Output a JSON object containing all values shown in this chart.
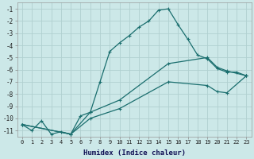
{
  "xlabel": "Humidex (Indice chaleur)",
  "bg_color": "#cce8e8",
  "grid_color": "#b0d0d0",
  "line_color": "#1a6e6e",
  "xlim": [
    -0.5,
    23.5
  ],
  "ylim": [
    -11.5,
    -0.5
  ],
  "yticks": [
    -11,
    -10,
    -9,
    -8,
    -7,
    -6,
    -5,
    -4,
    -3,
    -2,
    -1
  ],
  "xticks": [
    0,
    1,
    2,
    3,
    4,
    5,
    6,
    7,
    8,
    9,
    10,
    11,
    12,
    13,
    14,
    15,
    16,
    17,
    18,
    19,
    20,
    21,
    22,
    23
  ],
  "curve1_x": [
    0,
    1,
    2,
    3,
    4,
    5,
    6,
    7,
    8,
    9,
    10,
    11,
    12,
    13,
    14,
    15,
    16,
    17,
    18,
    19,
    20,
    21,
    22,
    23
  ],
  "curve1_y": [
    -10.5,
    -11.0,
    -10.2,
    -11.3,
    -11.1,
    -11.3,
    -9.8,
    -9.5,
    -7.0,
    -4.5,
    -3.8,
    -3.2,
    -2.5,
    -2.0,
    -1.1,
    -1.0,
    -2.3,
    -3.5,
    -4.8,
    -5.1,
    -5.9,
    -6.2,
    -6.2,
    -6.5
  ],
  "curve2_x": [
    0,
    5,
    7,
    10,
    15,
    19,
    20,
    21,
    23
  ],
  "curve2_y": [
    -10.5,
    -11.3,
    -9.5,
    -8.5,
    -5.5,
    -5.0,
    -5.8,
    -6.1,
    -6.5
  ],
  "curve3_x": [
    0,
    5,
    7,
    10,
    15,
    19,
    20,
    21,
    23
  ],
  "curve3_y": [
    -10.5,
    -11.3,
    -10.0,
    -9.2,
    -7.0,
    -7.3,
    -7.8,
    -7.9,
    -6.5
  ]
}
